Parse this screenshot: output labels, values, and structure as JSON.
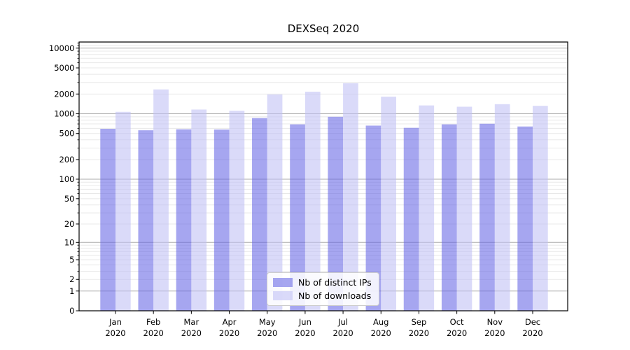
{
  "title": "DEXSeq 2020",
  "chart_data": {
    "type": "bar",
    "title": "DEXSeq 2020",
    "x_axis": {
      "months": [
        "Jan",
        "Feb",
        "Mar",
        "Apr",
        "May",
        "Jun",
        "Jul",
        "Aug",
        "Sep",
        "Oct",
        "Nov",
        "Dec"
      ],
      "year": "2020"
    },
    "series": [
      {
        "name": "Nb of distinct IPs",
        "color": "rgba(102,102,230,0.58)",
        "solid_color": "#a6a6f0",
        "values": [
          590,
          560,
          580,
          575,
          860,
          690,
          900,
          660,
          610,
          690,
          705,
          640
        ]
      },
      {
        "name": "Nb of downloads",
        "color": "rgba(191,191,245,0.58)",
        "solid_color": "#dadaf9",
        "values": [
          1070,
          2350,
          1160,
          1110,
          1970,
          2170,
          2920,
          1820,
          1340,
          1280,
          1400,
          1320
        ]
      }
    ],
    "y_axis": {
      "scale": "log1p",
      "min": 0,
      "max": 12400,
      "ticks": [
        0,
        1,
        2,
        5,
        10,
        20,
        50,
        100,
        200,
        500,
        1000,
        2000,
        5000,
        10000
      ]
    },
    "grid": {
      "major_at": [
        1,
        10,
        100,
        1000,
        10000
      ],
      "major_color": "#ababab",
      "minor_color": "#e8e8e8"
    },
    "legend_position": "lower center"
  },
  "colors": {
    "axis": "#000000",
    "background": "#ffffff",
    "tick_label": "#000000"
  }
}
